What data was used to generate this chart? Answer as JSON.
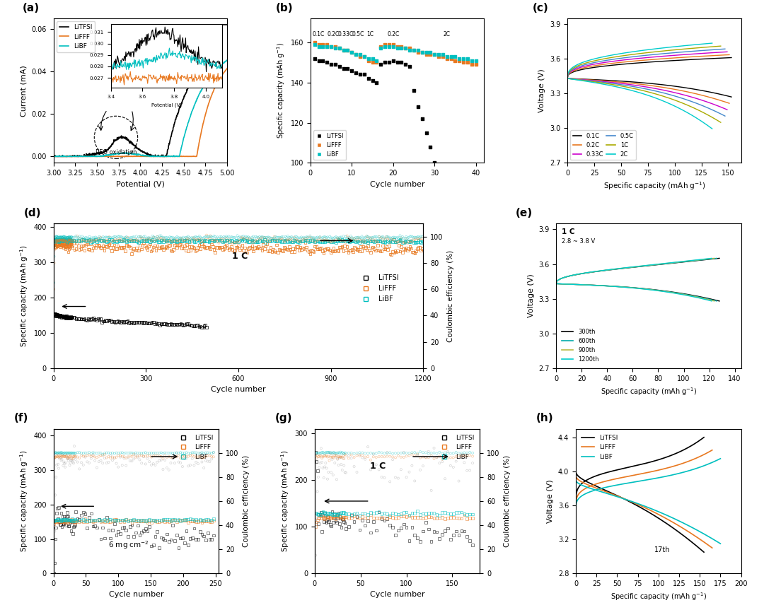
{
  "colors": {
    "black": "#000000",
    "orange": "#E87820",
    "cyan": "#00BFBF",
    "magenta": "#CC00CC",
    "yellow_green": "#AAAA00",
    "blue": "#4488CC",
    "light_cyan": "#00CCCC",
    "gray": "#888888"
  },
  "panel_labels": [
    "(a)",
    "(b)",
    "(c)",
    "(d)",
    "(e)",
    "(f)",
    "(g)",
    "(h)"
  ],
  "legend_items_solid": [
    "LiTFSI",
    "LiFFF",
    "LiBF"
  ],
  "c_rates_labels": [
    "0.1C",
    "0.2C",
    "0.33C",
    "0.5C",
    "1C",
    "2C"
  ],
  "cycle_legend_e": [
    "300th",
    "600th",
    "900th",
    "1200th"
  ]
}
